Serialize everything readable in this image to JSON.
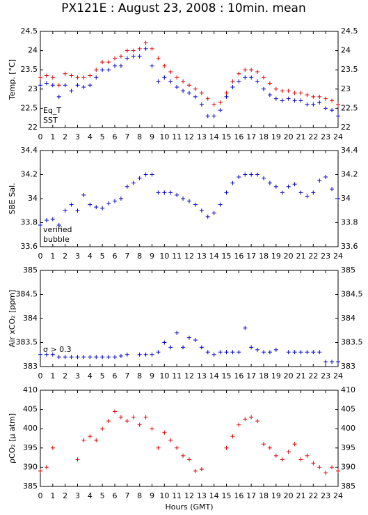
{
  "title": "PX121E : August 23, 2008 : 10min. mean",
  "chart_data": [
    {
      "type": "scatter",
      "ylabel": "Temp. [°C]",
      "xlim": [
        0,
        24
      ],
      "ylim": [
        22,
        24.5
      ],
      "xticks": [
        0,
        1,
        2,
        3,
        4,
        5,
        6,
        7,
        8,
        9,
        10,
        11,
        12,
        13,
        14,
        15,
        16,
        17,
        18,
        19,
        20,
        21,
        22,
        23,
        24
      ],
      "yticks": [
        22,
        22.5,
        23,
        23.5,
        24,
        24.5
      ],
      "x": [
        0,
        0.5,
        1,
        1.5,
        2,
        2.5,
        3,
        3.5,
        4,
        4.5,
        5,
        5.5,
        6,
        6.5,
        7,
        7.5,
        8,
        8.5,
        9,
        9.5,
        10,
        10.5,
        11,
        11.5,
        12,
        12.5,
        13,
        13.5,
        14,
        14.5,
        15,
        15.5,
        16,
        16.5,
        17,
        17.5,
        18,
        18.5,
        19,
        19.5,
        20,
        20.5,
        21,
        21.5,
        22,
        22.5,
        23,
        23.5,
        24
      ],
      "series": [
        {
          "name": "Eq_T",
          "color": "#dd0000",
          "values": [
            23.3,
            23.35,
            23.3,
            23.1,
            23.4,
            23.35,
            23.3,
            23.3,
            23.35,
            23.5,
            23.7,
            23.7,
            23.8,
            23.85,
            24.0,
            24.0,
            24.05,
            24.2,
            24.05,
            23.8,
            23.6,
            23.45,
            23.3,
            23.2,
            23.1,
            23.0,
            22.9,
            22.75,
            22.6,
            22.65,
            22.9,
            23.2,
            23.4,
            23.5,
            23.5,
            23.45,
            23.3,
            23.15,
            23.0,
            22.95,
            22.95,
            22.9,
            22.9,
            22.85,
            22.8,
            22.8,
            22.75,
            22.7,
            22.6
          ]
        },
        {
          "name": "SST",
          "color": "#0000cc",
          "values": [
            23.1,
            23.15,
            23.1,
            22.8,
            23.1,
            22.95,
            23.1,
            23.05,
            23.1,
            23.3,
            23.5,
            23.5,
            23.6,
            23.6,
            23.8,
            23.85,
            23.85,
            24.05,
            23.6,
            23.2,
            23.3,
            23.2,
            23.05,
            22.95,
            22.9,
            22.8,
            22.6,
            22.3,
            22.3,
            22.45,
            22.8,
            23.05,
            23.2,
            23.3,
            23.3,
            23.2,
            23.0,
            22.85,
            22.75,
            22.7,
            22.75,
            22.7,
            22.7,
            22.6,
            22.6,
            22.65,
            22.5,
            22.45,
            22.3
          ]
        }
      ]
    },
    {
      "type": "scatter",
      "ylabel": "SBE Sal.",
      "xlim": [
        0,
        24
      ],
      "ylim": [
        33.6,
        34.4
      ],
      "xticks": [
        0,
        1,
        2,
        3,
        4,
        5,
        6,
        7,
        8,
        9,
        10,
        11,
        12,
        13,
        14,
        15,
        16,
        17,
        18,
        19,
        20,
        21,
        22,
        23,
        24
      ],
      "yticks": [
        33.6,
        33.8,
        34,
        34.2,
        34.4
      ],
      "x": [
        0,
        0.5,
        1,
        1.5,
        2,
        2.5,
        3,
        3.5,
        4,
        4.5,
        5,
        5.5,
        6,
        6.5,
        7,
        7.5,
        8,
        8.5,
        9,
        9.5,
        10,
        10.5,
        11,
        11.5,
        12,
        12.5,
        13,
        13.5,
        14,
        14.5,
        15,
        15.5,
        16,
        16.5,
        17,
        17.5,
        18,
        18.5,
        19,
        19.5,
        20,
        20.5,
        21,
        21.5,
        22,
        22.5,
        23,
        23.5,
        24
      ],
      "series": [
        {
          "name": "verified",
          "color": "#0000cc",
          "values": [
            33.78,
            33.82,
            33.83,
            33.78,
            33.9,
            33.95,
            33.9,
            34.03,
            33.95,
            33.93,
            33.92,
            33.96,
            33.98,
            34.0,
            34.1,
            34.13,
            34.17,
            34.2,
            34.2,
            34.05,
            34.05,
            34.05,
            34.03,
            34.0,
            33.98,
            33.95,
            33.9,
            33.85,
            33.88,
            33.95,
            34.05,
            34.13,
            34.18,
            34.2,
            34.2,
            34.2,
            34.17,
            34.13,
            34.1,
            34.05,
            34.1,
            34.12,
            34.05,
            34.02,
            34.05,
            34.15,
            34.18,
            34.08,
            34.0
          ]
        }
      ],
      "legend_extra": {
        "text": "bubble",
        "color": "#cc00cc"
      }
    },
    {
      "type": "scatter",
      "ylabel": "Air xCO₂ [ppm]",
      "xlim": [
        0,
        24
      ],
      "ylim": [
        383,
        385
      ],
      "xticks": [
        0,
        1,
        2,
        3,
        4,
        5,
        6,
        7,
        8,
        9,
        10,
        11,
        12,
        13,
        14,
        15,
        16,
        17,
        18,
        19,
        20,
        21,
        22,
        23,
        24
      ],
      "yticks": [
        383,
        383.5,
        384,
        384.5,
        385
      ],
      "x": [
        0,
        0.5,
        1,
        1.5,
        2,
        2.5,
        3,
        3.5,
        4,
        4.5,
        5,
        5.5,
        6,
        6.5,
        7,
        7.5,
        8,
        8.5,
        9,
        9.5,
        10,
        10.5,
        11,
        11.5,
        12,
        12.5,
        13,
        13.5,
        14,
        14.5,
        15,
        15.5,
        16,
        16.5,
        17,
        17.5,
        18,
        18.5,
        19,
        19.5,
        20,
        20.5,
        21,
        21.5,
        22,
        22.5,
        23,
        23.5,
        24
      ],
      "series": [
        {
          "name": "Air xCO2",
          "color": "#0000cc",
          "values": [
            383.25,
            383.25,
            383.25,
            383.2,
            383.2,
            383.2,
            383.2,
            383.2,
            383.2,
            383.2,
            383.2,
            383.2,
            383.2,
            383.22,
            383.25,
            null,
            383.25,
            383.25,
            383.25,
            383.3,
            383.5,
            383.4,
            383.7,
            383.4,
            383.6,
            383.55,
            383.4,
            383.3,
            383.25,
            383.3,
            383.3,
            383.3,
            383.3,
            383.8,
            383.4,
            383.35,
            383.3,
            383.3,
            383.35,
            null,
            383.3,
            383.3,
            383.3,
            383.3,
            383.3,
            383.3,
            383.1,
            383.1,
            383.1
          ]
        }
      ],
      "annotation": {
        "text": "σ > 0.3",
        "color": "#cc00cc"
      }
    },
    {
      "type": "scatter",
      "ylabel": "ρCO₂ [μ atm]",
      "xlabel": "Hours (GMT)",
      "xlim": [
        0,
        24
      ],
      "ylim": [
        385,
        410
      ],
      "xticks": [
        0,
        1,
        2,
        3,
        4,
        5,
        6,
        7,
        8,
        9,
        10,
        11,
        12,
        13,
        14,
        15,
        16,
        17,
        18,
        19,
        20,
        21,
        22,
        23,
        24
      ],
      "yticks": [
        385,
        390,
        395,
        400,
        405,
        410
      ],
      "x": [
        0,
        0.5,
        1,
        1.5,
        2,
        2.5,
        3,
        3.5,
        4,
        4.5,
        5,
        5.5,
        6,
        6.5,
        7,
        7.5,
        8,
        8.5,
        9,
        9.5,
        10,
        10.5,
        11,
        11.5,
        12,
        12.5,
        13,
        13.5,
        14,
        14.5,
        15,
        15.5,
        16,
        16.5,
        17,
        17.5,
        18,
        18.5,
        19,
        19.5,
        20,
        20.5,
        21,
        21.5,
        22,
        22.5,
        23,
        23.5,
        24
      ],
      "series": [
        {
          "name": "pCO2",
          "color": "#dd0000",
          "values": [
            389,
            390,
            395,
            null,
            null,
            null,
            392,
            397,
            398,
            397,
            400,
            402,
            404.5,
            403,
            402,
            403,
            401,
            403,
            400,
            395,
            399,
            397,
            395,
            393,
            392,
            389,
            389.5,
            null,
            null,
            null,
            395,
            398,
            401,
            402.5,
            403,
            402,
            396,
            395,
            393,
            392,
            394,
            396,
            392,
            393,
            391,
            390,
            388.5,
            390,
            389
          ]
        }
      ]
    }
  ]
}
